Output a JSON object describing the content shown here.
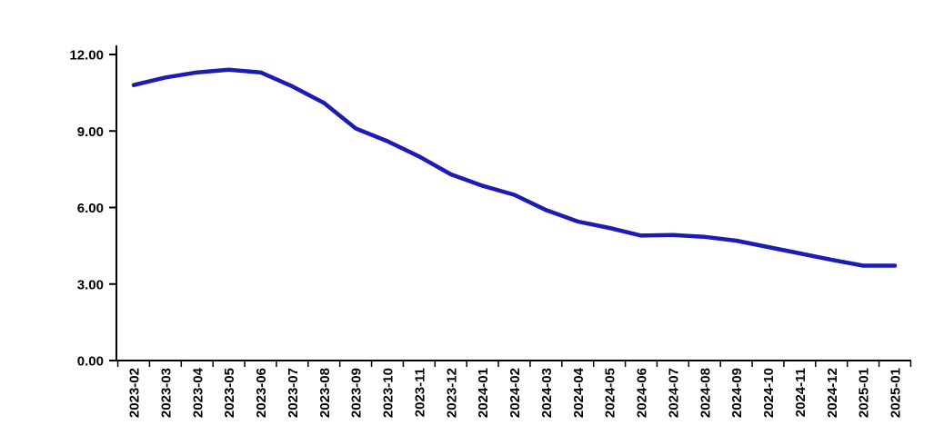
{
  "chart_data": {
    "type": "line",
    "title": "",
    "xlabel": "",
    "ylabel": "",
    "legend_position": "none",
    "grid": false,
    "ylim": [
      0,
      12
    ],
    "yticks": [
      "0.00",
      "3.00",
      "6.00",
      "9.00",
      "12.00"
    ],
    "categories": [
      "2023-02",
      "2023-03",
      "2023-04",
      "2023-05",
      "2023-06",
      "2023-07",
      "2023-08",
      "2023-09",
      "2023-10",
      "2023-11",
      "2023-12",
      "2024-01",
      "2024-02",
      "2024-03",
      "2024-04",
      "2024-05",
      "2024-06",
      "2024-07",
      "2024-08",
      "2024-09",
      "2024-10",
      "2024-11",
      "2024-12",
      "2025-01",
      "2025-01"
    ],
    "values": [
      10.8,
      11.1,
      11.3,
      11.4,
      11.3,
      10.75,
      10.1,
      9.1,
      8.6,
      8.0,
      7.3,
      6.85,
      6.5,
      5.9,
      5.45,
      5.2,
      4.9,
      4.92,
      4.85,
      4.7,
      4.45,
      4.2,
      3.95,
      3.72,
      3.72
    ],
    "line_color": "#1B1BB5",
    "axis_color": "#000000",
    "label_color": "#000000"
  }
}
